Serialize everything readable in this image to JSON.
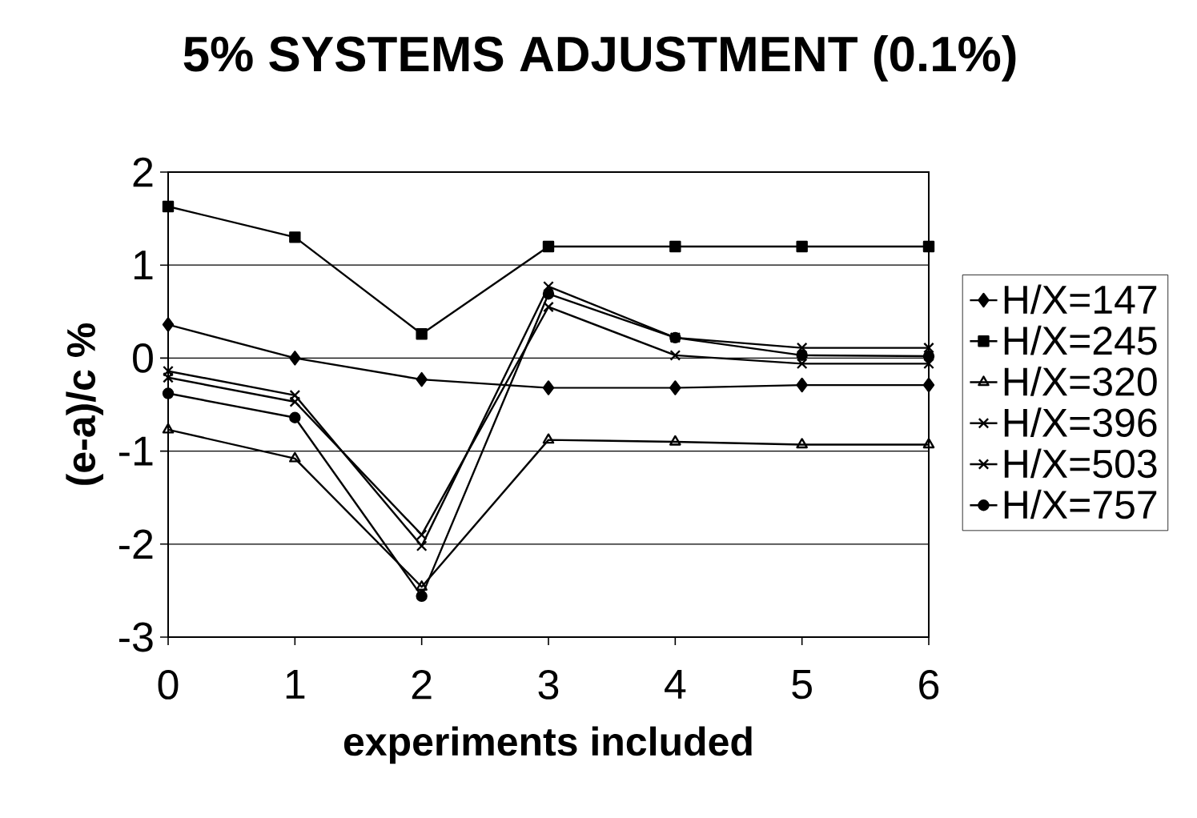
{
  "chart_data": {
    "type": "line",
    "title": "5% SYSTEMS ADJUSTMENT (0.1%)",
    "xlabel": "experiments included",
    "ylabel": "(e-a)/c %",
    "x": [
      0,
      1,
      2,
      3,
      4,
      5,
      6
    ],
    "xlim": [
      0,
      6
    ],
    "xticks": [
      0,
      1,
      2,
      3,
      4,
      5,
      6
    ],
    "ylim": [
      -3,
      2
    ],
    "yticks": [
      -3,
      -2,
      -1,
      0,
      1,
      2
    ],
    "grid": "y",
    "legend": "right",
    "series": [
      {
        "name": "H/X=147",
        "color": "#000000",
        "marker": "diamond",
        "values": [
          0.36,
          0.0,
          -0.23,
          -0.32,
          -0.32,
          -0.29,
          -0.29
        ]
      },
      {
        "name": "H/X=245",
        "color": "#000000",
        "marker": "square",
        "values": [
          1.63,
          1.3,
          0.26,
          1.2,
          1.2,
          1.2,
          1.2
        ]
      },
      {
        "name": "H/X=320",
        "color": "#000000",
        "marker": "triangle",
        "values": [
          -0.77,
          -1.08,
          -2.46,
          -0.88,
          -0.9,
          -0.93,
          -0.93
        ]
      },
      {
        "name": "H/X=396",
        "color": "#000000",
        "marker": "cross",
        "values": [
          -0.21,
          -0.47,
          -1.9,
          0.55,
          0.03,
          -0.06,
          -0.06
        ]
      },
      {
        "name": "H/X=503",
        "color": "#000000",
        "marker": "cross",
        "values": [
          -0.14,
          -0.4,
          -2.02,
          0.77,
          0.22,
          0.11,
          0.11
        ]
      },
      {
        "name": "H/X=757",
        "color": "#000000",
        "marker": "circle",
        "values": [
          -0.38,
          -0.64,
          -2.56,
          0.69,
          0.22,
          0.03,
          0.02
        ]
      }
    ]
  }
}
